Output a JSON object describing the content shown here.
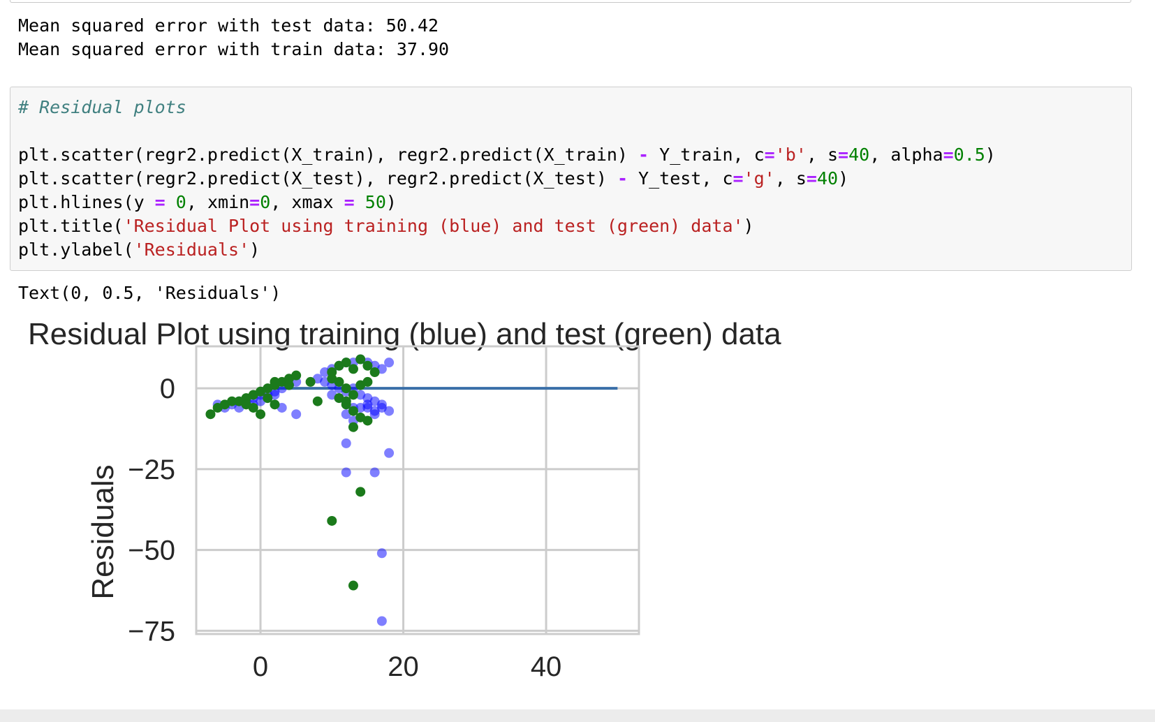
{
  "outputs": {
    "metrics_lines": [
      "Mean squared error with test data: 50.42",
      "Mean squared error with train data: 37.90"
    ],
    "result_text": "Text(0, 0.5, 'Residuals')"
  },
  "code_cell": {
    "lines": [
      [
        {
          "t": "comment",
          "v": "# Residual plots"
        }
      ],
      [],
      [
        {
          "t": "plain",
          "v": "plt.scatter(regr2.predict(X_train), regr2.predict(X_train) "
        },
        {
          "t": "op",
          "v": "-"
        },
        {
          "t": "plain",
          "v": " Y_train, c"
        },
        {
          "t": "op",
          "v": "="
        },
        {
          "t": "str",
          "v": "'b'"
        },
        {
          "t": "plain",
          "v": ", s"
        },
        {
          "t": "op",
          "v": "="
        },
        {
          "t": "num",
          "v": "40"
        },
        {
          "t": "plain",
          "v": ", alpha"
        },
        {
          "t": "op",
          "v": "="
        },
        {
          "t": "num",
          "v": "0.5"
        },
        {
          "t": "plain",
          "v": ")"
        }
      ],
      [
        {
          "t": "plain",
          "v": "plt.scatter(regr2.predict(X_test), regr2.predict(X_test) "
        },
        {
          "t": "op",
          "v": "-"
        },
        {
          "t": "plain",
          "v": " Y_test, c"
        },
        {
          "t": "op",
          "v": "="
        },
        {
          "t": "str",
          "v": "'g'"
        },
        {
          "t": "plain",
          "v": ", s"
        },
        {
          "t": "op",
          "v": "="
        },
        {
          "t": "num",
          "v": "40"
        },
        {
          "t": "plain",
          "v": ")"
        }
      ],
      [
        {
          "t": "plain",
          "v": "plt.hlines(y "
        },
        {
          "t": "op",
          "v": "="
        },
        {
          "t": "plain",
          "v": " "
        },
        {
          "t": "num",
          "v": "0"
        },
        {
          "t": "plain",
          "v": ", xmin"
        },
        {
          "t": "op",
          "v": "="
        },
        {
          "t": "num",
          "v": "0"
        },
        {
          "t": "plain",
          "v": ", xmax "
        },
        {
          "t": "op",
          "v": "="
        },
        {
          "t": "plain",
          "v": " "
        },
        {
          "t": "num",
          "v": "50"
        },
        {
          "t": "plain",
          "v": ")"
        }
      ],
      [
        {
          "t": "plain",
          "v": "plt.title("
        },
        {
          "t": "str",
          "v": "'Residual Plot using training (blue) and test (green) data'"
        },
        {
          "t": "plain",
          "v": ")"
        }
      ],
      [
        {
          "t": "plain",
          "v": "plt.ylabel("
        },
        {
          "t": "str",
          "v": "'Residuals'"
        },
        {
          "t": "plain",
          "v": ")"
        }
      ]
    ]
  },
  "colors": {
    "comment": "#408080",
    "operator": "#aa22ff",
    "string": "#ba2121",
    "number": "#008000",
    "train_points": "#0000ff",
    "test_points": "#1b7a1b",
    "hline": "#3a6fa8"
  },
  "chart_data": {
    "type": "scatter",
    "title": "Residual Plot using training (blue) and test (green) data",
    "xlabel": "",
    "ylabel": "Residuals",
    "xlim": [
      -9,
      53
    ],
    "ylim": [
      -76,
      13
    ],
    "xticks": [
      0,
      20,
      40
    ],
    "yticks": [
      0,
      -25,
      -50,
      -75
    ],
    "xtick_labels": [
      "0",
      "20",
      "40"
    ],
    "ytick_labels": [
      "0",
      "−25",
      "−50",
      "−75"
    ],
    "grid": true,
    "hline": {
      "y": 0,
      "xmin": 0,
      "xmax": 50
    },
    "series": [
      {
        "color": "b",
        "alpha": 0.5,
        "points": [
          [
            -6,
            -5
          ],
          [
            -5,
            -6
          ],
          [
            -4,
            -5
          ],
          [
            -3,
            -4
          ],
          [
            -2,
            -4
          ],
          [
            -1,
            -3
          ],
          [
            0,
            -2
          ],
          [
            1,
            -2
          ],
          [
            2,
            -1
          ],
          [
            3,
            0
          ],
          [
            4,
            1
          ],
          [
            5,
            2
          ],
          [
            3,
            -6
          ],
          [
            5,
            -8
          ],
          [
            1,
            -3
          ],
          [
            2,
            -2
          ],
          [
            0,
            -4
          ],
          [
            -1,
            -5
          ],
          [
            -3,
            -6
          ],
          [
            8,
            3
          ],
          [
            9,
            5
          ],
          [
            10,
            6
          ],
          [
            11,
            7
          ],
          [
            12,
            8
          ],
          [
            13,
            8
          ],
          [
            14,
            9
          ],
          [
            15,
            8
          ],
          [
            16,
            7
          ],
          [
            17,
            6
          ],
          [
            18,
            8
          ],
          [
            9,
            2
          ],
          [
            10,
            1
          ],
          [
            11,
            0
          ],
          [
            12,
            -1
          ],
          [
            13,
            0
          ],
          [
            14,
            -2
          ],
          [
            15,
            -3
          ],
          [
            16,
            -4
          ],
          [
            17,
            -5
          ],
          [
            10,
            -2
          ],
          [
            11,
            -3
          ],
          [
            12,
            -4
          ],
          [
            13,
            -6
          ],
          [
            14,
            -6
          ],
          [
            15,
            -5
          ],
          [
            16,
            -7
          ],
          [
            17,
            -6
          ],
          [
            18,
            -7
          ],
          [
            12,
            -8
          ],
          [
            13,
            -10
          ],
          [
            16,
            -8
          ],
          [
            15,
            -6
          ],
          [
            12,
            -17
          ],
          [
            18,
            -20
          ],
          [
            12,
            -26
          ],
          [
            16,
            -26
          ],
          [
            17,
            -51
          ],
          [
            17,
            -72
          ]
        ]
      },
      {
        "color": "g",
        "alpha": 1,
        "points": [
          [
            -7,
            -8
          ],
          [
            -6,
            -6
          ],
          [
            -5,
            -5
          ],
          [
            -4,
            -4
          ],
          [
            -3,
            -4
          ],
          [
            -2,
            -3
          ],
          [
            -1,
            -2
          ],
          [
            0,
            -1
          ],
          [
            1,
            0
          ],
          [
            2,
            1
          ],
          [
            3,
            2
          ],
          [
            4,
            3
          ],
          [
            5,
            4
          ],
          [
            -2,
            -5
          ],
          [
            -1,
            -6
          ],
          [
            0,
            -8
          ],
          [
            2,
            -5
          ],
          [
            1,
            -3
          ],
          [
            4,
            1
          ],
          [
            2,
            2
          ],
          [
            7,
            2
          ],
          [
            10,
            5
          ],
          [
            11,
            7
          ],
          [
            12,
            8
          ],
          [
            13,
            6
          ],
          [
            14,
            9
          ],
          [
            15,
            7
          ],
          [
            16,
            5
          ],
          [
            10,
            3
          ],
          [
            11,
            2
          ],
          [
            12,
            0
          ],
          [
            13,
            -2
          ],
          [
            14,
            1
          ],
          [
            15,
            2
          ],
          [
            8,
            -4
          ],
          [
            11,
            -3
          ],
          [
            12,
            -5
          ],
          [
            13,
            -7
          ],
          [
            14,
            -9
          ],
          [
            15,
            -10
          ],
          [
            12,
            -4
          ],
          [
            13,
            -12
          ],
          [
            14,
            -32
          ],
          [
            10,
            -41
          ],
          [
            13,
            -61
          ]
        ]
      }
    ]
  }
}
